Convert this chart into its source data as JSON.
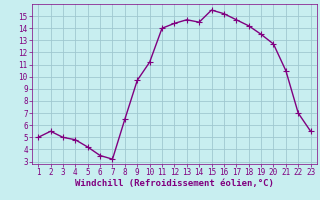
{
  "x": [
    1,
    2,
    3,
    4,
    5,
    6,
    7,
    8,
    9,
    10,
    11,
    12,
    13,
    14,
    15,
    16,
    17,
    18,
    19,
    20,
    21,
    22,
    23
  ],
  "y": [
    5.0,
    5.5,
    5.0,
    4.8,
    4.2,
    3.5,
    3.2,
    6.5,
    9.7,
    11.2,
    14.0,
    14.4,
    14.7,
    14.5,
    15.5,
    15.2,
    14.7,
    14.2,
    13.5,
    12.7,
    10.5,
    7.0,
    5.5
  ],
  "line_color": "#800080",
  "marker": "+",
  "marker_size": 4,
  "bg_color": "#c8eef0",
  "grid_color": "#a0c8d0",
  "xlabel": "Windchill (Refroidissement éolien,°C)",
  "xlabel_color": "#800080",
  "ylabel_ticks": [
    3,
    4,
    5,
    6,
    7,
    8,
    9,
    10,
    11,
    12,
    13,
    14,
    15
  ],
  "xticks": [
    1,
    2,
    3,
    4,
    5,
    6,
    7,
    8,
    9,
    10,
    11,
    12,
    13,
    14,
    15,
    16,
    17,
    18,
    19,
    20,
    21,
    22,
    23
  ],
  "ylim": [
    2.8,
    16.0
  ],
  "xlim": [
    0.5,
    23.5
  ],
  "tick_color": "#800080",
  "tick_labelsize": 5.5,
  "xlabel_fontsize": 6.5,
  "linewidth": 1.0
}
